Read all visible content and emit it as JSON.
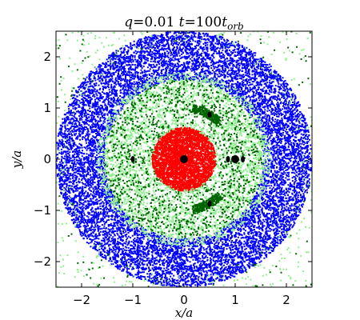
{
  "chart_data": {
    "type": "scatter",
    "title": "q=0.01 t=100t_orb",
    "title_parts": {
      "q_label": "q",
      "q_value": "=0.01 ",
      "t_label": "t",
      "t_eq": "=100",
      "t_unit": "t",
      "t_sub": "orb"
    },
    "xlabel": "x/a",
    "ylabel": "y/a",
    "xlim": [
      -2.5,
      2.5
    ],
    "ylim": [
      -2.5,
      2.5
    ],
    "xticks": [
      -2,
      -1,
      0,
      1,
      2
    ],
    "yticks": [
      -2,
      -1,
      0,
      1,
      2
    ],
    "xtick_labels": [
      "−2",
      "−1",
      "0",
      "1",
      "2"
    ],
    "ytick_labels": [
      "−2",
      "−1",
      "0",
      "1",
      "2"
    ],
    "grid": false,
    "colors": {
      "blue": "#0000ff",
      "lightgreen": "#90ee90",
      "darkgreen": "#006400",
      "red": "#ff0000",
      "black": "#000000"
    },
    "series": [
      {
        "color": "blue",
        "distribution": "annulus",
        "r_inner": 1.55,
        "r_outer": 2.5,
        "count": 11000
      },
      {
        "color": "lightgreen",
        "distribution": "annulus",
        "r_inner": 0.95,
        "r_outer": 1.7,
        "count": 3000
      },
      {
        "color": "lightgreen",
        "distribution": "annulus",
        "r_inner": 0.5,
        "r_outer": 1.0,
        "count": 700
      },
      {
        "color": "darkgreen",
        "distribution": "annulus",
        "r_inner": 0.55,
        "r_outer": 1.55,
        "count": 1300
      },
      {
        "color": "lightgreen",
        "distribution": "background",
        "count": 300
      },
      {
        "color": "darkgreen",
        "distribution": "background",
        "count": 110
      },
      {
        "color": "darkgreen",
        "distribution": "arc",
        "radius": 1.0,
        "angle_from": 45,
        "angle_to": 80,
        "width": 0.08,
        "count": 280
      },
      {
        "color": "darkgreen",
        "distribution": "arc",
        "radius": 1.0,
        "angle_from": -80,
        "angle_to": -45,
        "width": 0.08,
        "count": 280
      },
      {
        "color": "red",
        "distribution": "disk",
        "r_outer": 0.62,
        "count": 3200
      },
      {
        "color": "lightgreen",
        "distribution": "annulus",
        "r_inner": 0.6,
        "r_outer": 0.72,
        "count": 120
      }
    ],
    "bodies": [
      {
        "x": 0.0,
        "y": 0.0,
        "size": "large"
      },
      {
        "x": 1.0,
        "y": 0.0,
        "size": "large"
      },
      {
        "x": 0.5,
        "y": 0.87,
        "size": "small"
      },
      {
        "x": 0.5,
        "y": -0.87,
        "size": "small"
      },
      {
        "x": -1.0,
        "y": 0.0,
        "size": "small"
      },
      {
        "x": 0.86,
        "y": 0.0,
        "size": "small"
      },
      {
        "x": 1.15,
        "y": 0.0,
        "size": "small"
      }
    ]
  }
}
